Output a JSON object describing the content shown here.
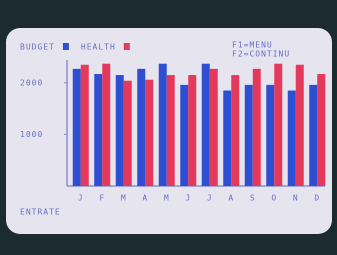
{
  "chart_data": {
    "type": "bar",
    "legend_items": [
      "BUDGET",
      "HEALTH"
    ],
    "annotations": [
      "F1=MENU",
      "F2=CONTINU"
    ],
    "x_label": "ENTRATE",
    "categories": [
      "J",
      "F",
      "M",
      "A",
      "M",
      "J",
      "J",
      "A",
      "S",
      "O",
      "N",
      "D"
    ],
    "series": [
      {
        "name": "BUDGET",
        "color": "#2f4fd2",
        "values": [
          2270,
          2170,
          2150,
          2270,
          2370,
          1960,
          2370,
          1850,
          1960,
          1960,
          1850,
          1960
        ]
      },
      {
        "name": "HEALTH",
        "color": "#e33a5c",
        "values": [
          2350,
          2370,
          2040,
          2060,
          2150,
          2150,
          2270,
          2150,
          2270,
          2370,
          2350,
          2170
        ]
      }
    ],
    "ylim": [
      0,
      2500
    ],
    "yticks": [
      1000,
      2000
    ]
  }
}
